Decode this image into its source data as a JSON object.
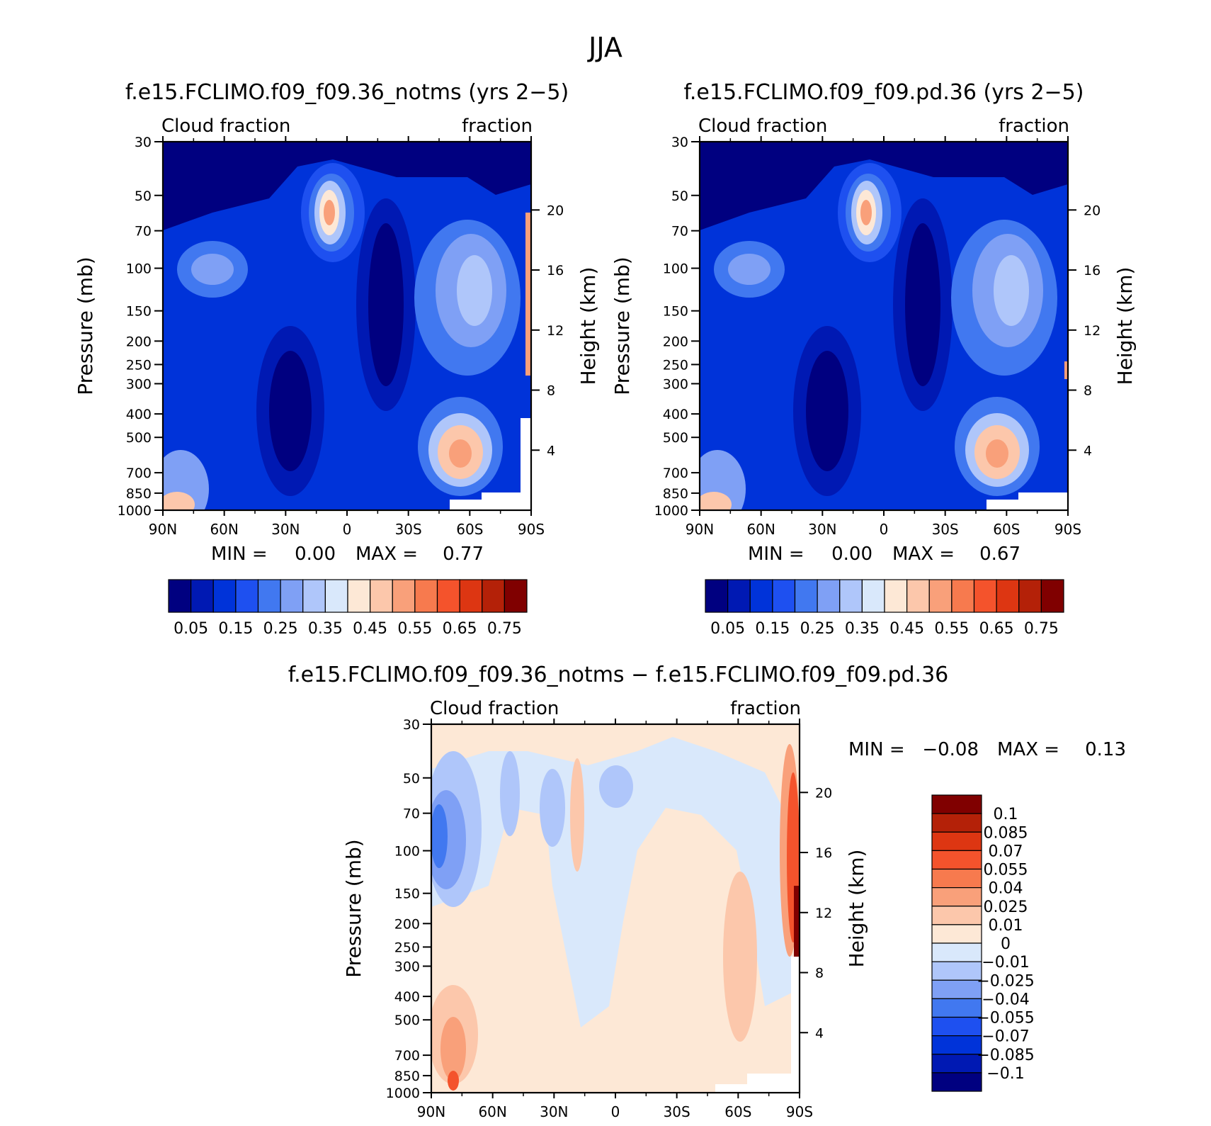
{
  "figure_title": "JJA",
  "chart_data": [
    {
      "type": "contour",
      "title": "f.e15.FCLIMO.f09_f09.36_notms (yrs 2−5)",
      "left_label": "Cloud fraction",
      "right_label": "fraction",
      "xlabel": "",
      "ylabel": "Pressure (mb)",
      "y2label": "Height (km)",
      "x_ticks": [
        "90N",
        "60N",
        "30N",
        "0",
        "30S",
        "60S",
        "90S"
      ],
      "y_ticks": [
        "30",
        "50",
        "70",
        "100",
        "150",
        "200",
        "250",
        "300",
        "400",
        "500",
        "700",
        "850",
        "1000"
      ],
      "y2_ticks": [
        "20",
        "16",
        "12",
        "8",
        "4"
      ],
      "ylim": [
        1000,
        30
      ],
      "stats": {
        "min_label": "MIN =",
        "min": "0.00",
        "max_label": "MAX =",
        "max": "0.77"
      },
      "colorbar": {
        "labels": [
          "0.05",
          "0.15",
          "0.25",
          "0.35",
          "0.45",
          "0.55",
          "0.65",
          "0.75"
        ],
        "colors": [
          "#000080",
          "#0019b3",
          "#0033d9",
          "#1e50f0",
          "#4178f0",
          "#7fa0f5",
          "#afc6fa",
          "#d9e8fb",
          "#fde8d6",
          "#fcc7ab",
          "#f9a07a",
          "#f77a4e",
          "#f4532c",
          "#dd3612",
          "#b42108",
          "#800000"
        ]
      }
    },
    {
      "type": "contour",
      "title": "f.e15.FCLIMO.f09_f09.pd.36 (yrs 2−5)",
      "left_label": "Cloud fraction",
      "right_label": "fraction",
      "xlabel": "",
      "ylabel": "Pressure (mb)",
      "y2label": "Height (km)",
      "x_ticks": [
        "90N",
        "60N",
        "30N",
        "0",
        "30S",
        "60S",
        "90S"
      ],
      "y_ticks": [
        "30",
        "50",
        "70",
        "100",
        "150",
        "200",
        "250",
        "300",
        "400",
        "500",
        "700",
        "850",
        "1000"
      ],
      "y2_ticks": [
        "20",
        "16",
        "12",
        "8",
        "4"
      ],
      "ylim": [
        1000,
        30
      ],
      "stats": {
        "min_label": "MIN =",
        "min": "0.00",
        "max_label": "MAX =",
        "max": "0.67"
      },
      "colorbar": {
        "labels": [
          "0.05",
          "0.15",
          "0.25",
          "0.35",
          "0.45",
          "0.55",
          "0.65",
          "0.75"
        ],
        "colors": [
          "#000080",
          "#0019b3",
          "#0033d9",
          "#1e50f0",
          "#4178f0",
          "#7fa0f5",
          "#afc6fa",
          "#d9e8fb",
          "#fde8d6",
          "#fcc7ab",
          "#f9a07a",
          "#f77a4e",
          "#f4532c",
          "#dd3612",
          "#b42108",
          "#800000"
        ]
      }
    },
    {
      "type": "contour",
      "title": "f.e15.FCLIMO.f09_f09.36_notms − f.e15.FCLIMO.f09_f09.pd.36",
      "left_label": "Cloud fraction",
      "right_label": "fraction",
      "xlabel": "",
      "ylabel": "Pressure (mb)",
      "y2label": "Height (km)",
      "x_ticks": [
        "90N",
        "60N",
        "30N",
        "0",
        "30S",
        "60S",
        "90S"
      ],
      "y_ticks": [
        "30",
        "50",
        "70",
        "100",
        "150",
        "200",
        "250",
        "300",
        "400",
        "500",
        "700",
        "850",
        "1000"
      ],
      "y2_ticks": [
        "20",
        "16",
        "12",
        "8",
        "4"
      ],
      "ylim": [
        1000,
        30
      ],
      "stats": {
        "min_label": "MIN =",
        "min": "−0.08",
        "max_label": "MAX =",
        "max": "0.13"
      },
      "colorbar": {
        "labels": [
          "0.1",
          "0.085",
          "0.07",
          "0.055",
          "0.04",
          "0.025",
          "0.01",
          "0",
          "−0.01",
          "−0.025",
          "−0.04",
          "−0.055",
          "−0.07",
          "−0.085",
          "−0.1"
        ],
        "colors": [
          "#800000",
          "#b42108",
          "#dd3612",
          "#f4532c",
          "#f77a4e",
          "#f9a07a",
          "#fcc7ab",
          "#fde8d6",
          "#d9e8fb",
          "#afc6fa",
          "#7fa0f5",
          "#4178f0",
          "#1e50f0",
          "#0033d9",
          "#0019b3",
          "#000080"
        ]
      }
    }
  ]
}
